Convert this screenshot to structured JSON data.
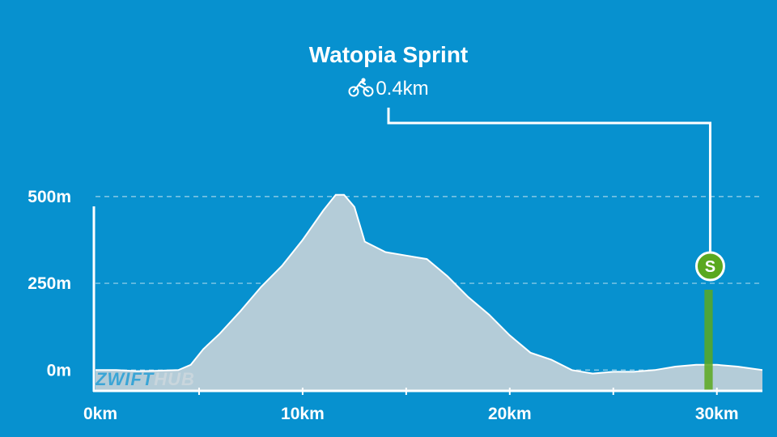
{
  "segment": {
    "name": "Watopia Sprint",
    "distance": "0.4km",
    "icon": "cyclist-icon",
    "marker_label": "S",
    "marker_color": "#5aa81f"
  },
  "watermark": {
    "part1": "ZWIFT",
    "part2": "HUB"
  },
  "colors": {
    "background": "#0791cf",
    "profile_fill": "#b4ccd8",
    "profile_line": "#ffffff",
    "segment_band": "#5aa81f"
  },
  "chart_data": {
    "type": "area",
    "title": "",
    "xlabel": "",
    "ylabel": "",
    "x_unit": "km",
    "xlim": [
      0,
      32.2
    ],
    "ylim": [
      -60,
      600
    ],
    "xticks": [
      0,
      10,
      20,
      30
    ],
    "xtick_labels": [
      "0km",
      "10km",
      "20km",
      "30km"
    ],
    "yticks": [
      0,
      250,
      500
    ],
    "ytick_labels": [
      "0m",
      "250m",
      "500m"
    ],
    "grid": true,
    "segment_start_km": 29.4,
    "segment_end_km": 29.8,
    "x": [
      0,
      1,
      2,
      3,
      4,
      4.6,
      5.2,
      6,
      7,
      8,
      9,
      10,
      11,
      11.6,
      12,
      12.5,
      13,
      14,
      15,
      16,
      17,
      18,
      19,
      20,
      21,
      22,
      23,
      24,
      25,
      26,
      27,
      28,
      29,
      29.8,
      30,
      31,
      32.2
    ],
    "y": [
      0,
      0,
      -3,
      -2,
      0,
      15,
      60,
      105,
      170,
      240,
      300,
      375,
      460,
      505,
      505,
      470,
      370,
      340,
      330,
      320,
      270,
      210,
      160,
      100,
      50,
      30,
      0,
      -10,
      -5,
      -5,
      0,
      10,
      15,
      15,
      15,
      10,
      0
    ]
  }
}
